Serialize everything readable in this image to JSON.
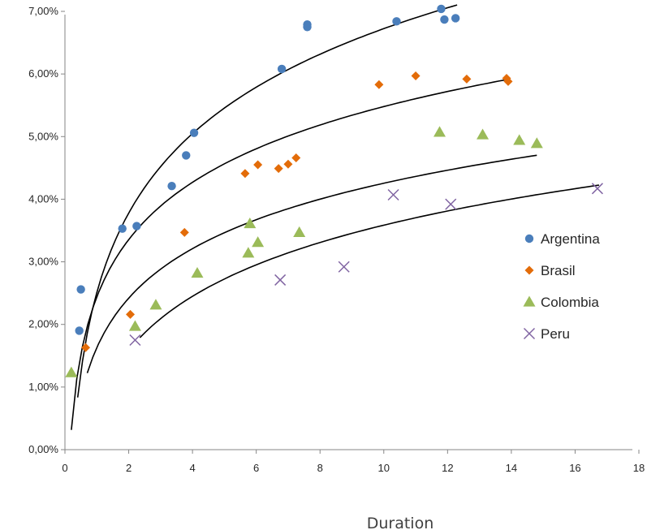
{
  "chart_data": {
    "type": "scatter",
    "title": "",
    "xlabel": "Duration",
    "ylabel": "",
    "xlim": [
      0,
      18
    ],
    "ylim": [
      0,
      0.07
    ],
    "x_ticks": [
      0,
      2,
      4,
      6,
      8,
      10,
      12,
      14,
      16,
      18
    ],
    "y_ticks": [
      0,
      0.01,
      0.02,
      0.03,
      0.04,
      0.05,
      0.06,
      0.07
    ],
    "y_tick_labels": [
      "0,00%",
      "1,00%",
      "2,00%",
      "3,00%",
      "4,00%",
      "5,00%",
      "6,00%",
      "7,00%"
    ],
    "grid": false,
    "legend_position": "right",
    "trendline_type": "logarithmic",
    "series": [
      {
        "name": "Argentina",
        "color": "#4a7ebb",
        "marker": "circle",
        "points": [
          [
            0.45,
            0.019
          ],
          [
            0.5,
            0.0256
          ],
          [
            1.8,
            0.0353
          ],
          [
            2.25,
            0.0357
          ],
          [
            3.35,
            0.0421
          ],
          [
            3.8,
            0.047
          ],
          [
            4.05,
            0.0506
          ],
          [
            6.8,
            0.0608
          ],
          [
            7.6,
            0.0675
          ],
          [
            7.6,
            0.0679
          ],
          [
            10.4,
            0.0684
          ],
          [
            11.8,
            0.0704
          ],
          [
            11.9,
            0.0687
          ],
          [
            12.25,
            0.0689
          ]
        ],
        "trend": {
          "a": 0.0251,
          "b": 0.0183,
          "x_range": [
            0.4,
            12.3
          ]
        }
      },
      {
        "name": "Brasil",
        "color": "#e36c09",
        "marker": "diamond",
        "points": [
          [
            0.65,
            0.0163
          ],
          [
            2.05,
            0.0216
          ],
          [
            3.75,
            0.0347
          ],
          [
            5.65,
            0.0441
          ],
          [
            6.05,
            0.0455
          ],
          [
            6.7,
            0.0449
          ],
          [
            7.0,
            0.0456
          ],
          [
            7.25,
            0.0466
          ],
          [
            9.85,
            0.0583
          ],
          [
            11.0,
            0.0597
          ],
          [
            12.6,
            0.0592
          ],
          [
            13.85,
            0.0593
          ],
          [
            13.9,
            0.0588
          ]
        ],
        "trend": {
          "a": 0.0244,
          "b": 0.0132,
          "x_range": [
            0.2,
            13.95
          ]
        }
      },
      {
        "name": "Colombia",
        "color": "#9bbb59",
        "marker": "triangle",
        "points": [
          [
            0.2,
            0.0123
          ],
          [
            2.2,
            0.0197
          ],
          [
            2.85,
            0.0231
          ],
          [
            4.15,
            0.0282
          ],
          [
            5.75,
            0.0314
          ],
          [
            5.8,
            0.0361
          ],
          [
            6.05,
            0.0331
          ],
          [
            7.35,
            0.0347
          ],
          [
            11.75,
            0.0507
          ],
          [
            13.1,
            0.0503
          ],
          [
            14.25,
            0.0494
          ],
          [
            14.8,
            0.0489
          ]
        ],
        "trend": {
          "a": 0.0163,
          "b": 0.0114,
          "x_range": [
            0.7,
            14.8
          ]
        }
      },
      {
        "name": "Peru",
        "color": "#8064a2",
        "marker": "x",
        "points": [
          [
            2.2,
            0.0175
          ],
          [
            6.75,
            0.0271
          ],
          [
            8.75,
            0.0292
          ],
          [
            10.3,
            0.0407
          ],
          [
            12.1,
            0.0392
          ],
          [
            16.7,
            0.0417
          ]
        ],
        "trend": {
          "a": 0.0073,
          "b": 0.0124,
          "x_range": [
            2.35,
            16.75
          ]
        }
      }
    ]
  }
}
